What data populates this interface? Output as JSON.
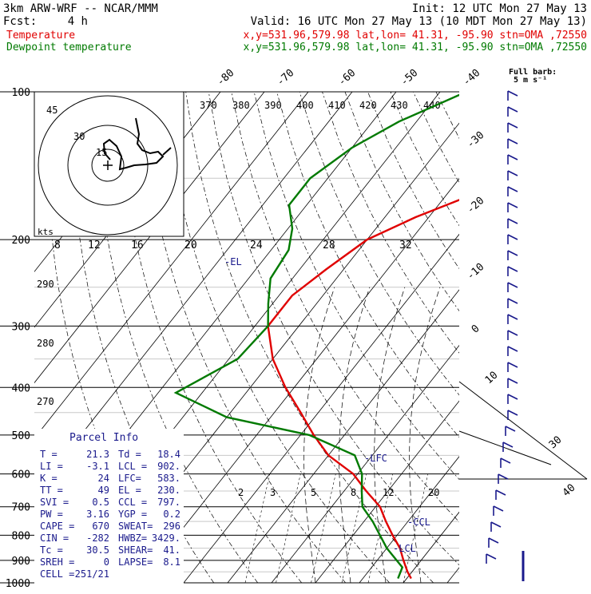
{
  "header": {
    "model": "3km ARW-WRF -- NCAR/MMM",
    "init": "Init: 12 UTC Mon 27 May 13",
    "fcst_label": "Fcst:",
    "fcst_value": "4 h",
    "valid": "Valid: 16 UTC Mon 27 May 13 (10 MDT Mon 27 May 13)",
    "temp_name": "Temperature",
    "temp_info": "x,y=531.96,579.98   lat,lon= 41.31, -95.90  stn=OMA ,72550",
    "dew_name": "Dewpoint temperature",
    "dew_info": "x,y=531.96,579.98   lat,lon= 41.31, -95.90  stn=OMA ,72550"
  },
  "barb_key": {
    "line1": "Full barb:",
    "line2": "5 m s⁻¹"
  },
  "parcel": {
    "title": "Parcel Info",
    "rows": [
      [
        "T   =",
        "21.3",
        "Td =",
        "18.4"
      ],
      [
        "LI  =",
        "-3.1",
        "LCL =",
        "902."
      ],
      [
        "K   =",
        "24",
        "LFC=",
        "583."
      ],
      [
        "TT  =",
        "49",
        "EL  =",
        "230."
      ],
      [
        "SVI =",
        "0.5",
        "CCL =",
        "797."
      ],
      [
        "PW  =",
        "3.16",
        "YGP =",
        "0.2"
      ],
      [
        "CAPE =",
        "670",
        "SWEAT=",
        "296"
      ],
      [
        "CIN =",
        "-282",
        "HWBZ=",
        "3429."
      ],
      [
        "Tc  =",
        "30.5",
        "SHEAR=",
        "41."
      ],
      [
        "SREH =",
        "0",
        "LAPSE=",
        "8.1"
      ],
      [
        "CELL =",
        "251/21",
        "",
        ""
      ]
    ]
  },
  "hodograph": {
    "units": "kts",
    "speed_rings": [
      "15",
      "30",
      "45"
    ],
    "axis_ticks": [
      "8",
      "12",
      "16",
      "20",
      "24",
      "28",
      "32"
    ]
  },
  "chart_data": {
    "type": "line",
    "title": "",
    "xlabel": "",
    "ylabel": "",
    "pressure_levels": [
      "100",
      "200",
      "300",
      "400",
      "500",
      "600",
      "700",
      "800",
      "900",
      "1000"
    ],
    "isotherm_labels": [
      "-80",
      "-70",
      "-60",
      "-50",
      "-40",
      "-30",
      "-20",
      "-10",
      "0",
      "10",
      "30",
      "40"
    ],
    "theta_labels": [
      "370",
      "380",
      "390",
      "400",
      "410",
      "420",
      "430",
      "440",
      "290",
      "280",
      "270"
    ],
    "mixing_ratio_labels": [
      "2",
      "3",
      "5",
      "8",
      "12",
      "20"
    ],
    "level_markers": [
      "EL",
      "LFC",
      "CCL",
      "LCL"
    ],
    "ylim": [
      1000,
      100
    ],
    "series": [
      {
        "name": "Temperature",
        "color": "#e00000",
        "x": [
          -20,
          -21,
          -25,
          -33,
          -43,
          -50,
          -54,
          -57,
          -57,
          -50,
          -42,
          -34,
          -27,
          -20,
          -11,
          -5,
          1,
          5,
          9,
          13,
          16,
          19,
          21
        ],
        "y": [
          100,
          120,
          140,
          160,
          180,
          200,
          230,
          260,
          300,
          350,
          400,
          450,
          500,
          550,
          600,
          650,
          700,
          750,
          800,
          850,
          900,
          950,
          980
        ]
      },
      {
        "name": "Dewpoint temperature",
        "color": "#007a00",
        "x": [
          -54,
          -64,
          -70,
          -74,
          -74,
          -69,
          -66,
          -65,
          -61,
          -57,
          -58,
          -66,
          -50,
          -28,
          -14,
          -9,
          -6,
          -3,
          2,
          10,
          17,
          18
        ],
        "y": [
          100,
          115,
          130,
          150,
          170,
          190,
          210,
          240,
          270,
          300,
          350,
          410,
          460,
          500,
          550,
          600,
          650,
          700,
          750,
          850,
          930,
          980
        ]
      }
    ]
  }
}
